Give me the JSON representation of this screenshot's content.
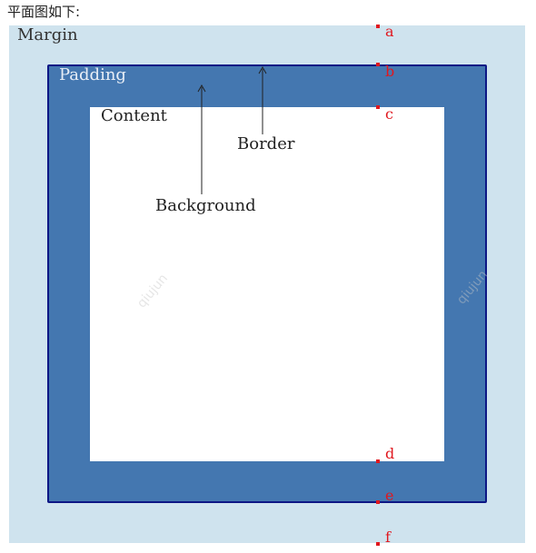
{
  "caption": "平面图如下:",
  "labels": {
    "margin": "Margin",
    "padding": "Padding",
    "content": "Content",
    "border": "Border",
    "background": "Background"
  },
  "markers": [
    "a",
    "b",
    "c",
    "d",
    "e",
    "f"
  ],
  "watermark": "qiujun",
  "colors": {
    "margin": "#cfe3ee",
    "padding": "#4477b0",
    "border": "#0d1785",
    "content": "#ffffff",
    "marker": "#e0181f"
  }
}
